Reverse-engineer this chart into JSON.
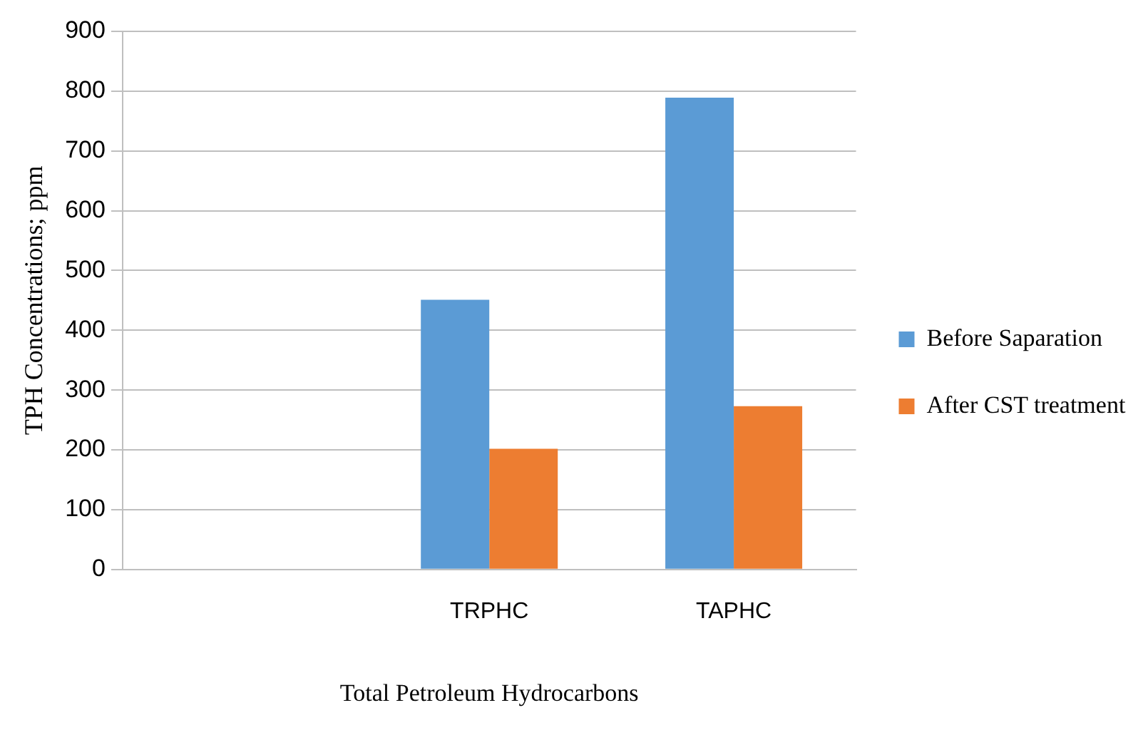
{
  "chart_data": {
    "type": "bar",
    "xlabel": "Total Petroleum Hydrocarbons",
    "ylabel": "TPH Concentrations; ppm",
    "categories": [
      null,
      "TRPHC",
      "TAPHC"
    ],
    "series": [
      {
        "name": "Before Saparation",
        "color": "#5b9bd5",
        "values": [
          null,
          451,
          789
        ]
      },
      {
        "name": "After CST treatment",
        "color": "#ed7d31",
        "values": [
          null,
          202,
          273
        ]
      }
    ],
    "ylim": [
      0,
      900
    ],
    "yticks": [
      0,
      100,
      200,
      300,
      400,
      500,
      600,
      700,
      800,
      900
    ],
    "grid": "y",
    "legend": "right"
  }
}
